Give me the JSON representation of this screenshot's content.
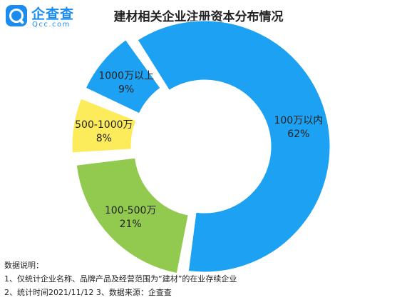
{
  "logo": {
    "name": "企查查",
    "sub": "Qcc.com"
  },
  "chart_data": {
    "type": "pie",
    "title": "建材相关企业注册资本分布情况",
    "slices": [
      {
        "label": "100万以内",
        "value": 62,
        "value_label": "62%",
        "color": "#1da1f2"
      },
      {
        "label": "100-500万",
        "value": 21,
        "value_label": "21%",
        "color": "#92c94f"
      },
      {
        "label": "500-1000万",
        "value": 8,
        "value_label": "8%",
        "color": "#fcec5b"
      },
      {
        "label": "1000万以上",
        "value": 9,
        "value_label": "9%",
        "color": "#1da1f2"
      }
    ]
  },
  "notes": {
    "heading": "数据说明：",
    "line1": "1、仅统计企业名称、品牌产品及经营范围为“建材”的在业存续企业",
    "line2": "2、统计时间2021/11/12   3、数据来源：企查查"
  }
}
